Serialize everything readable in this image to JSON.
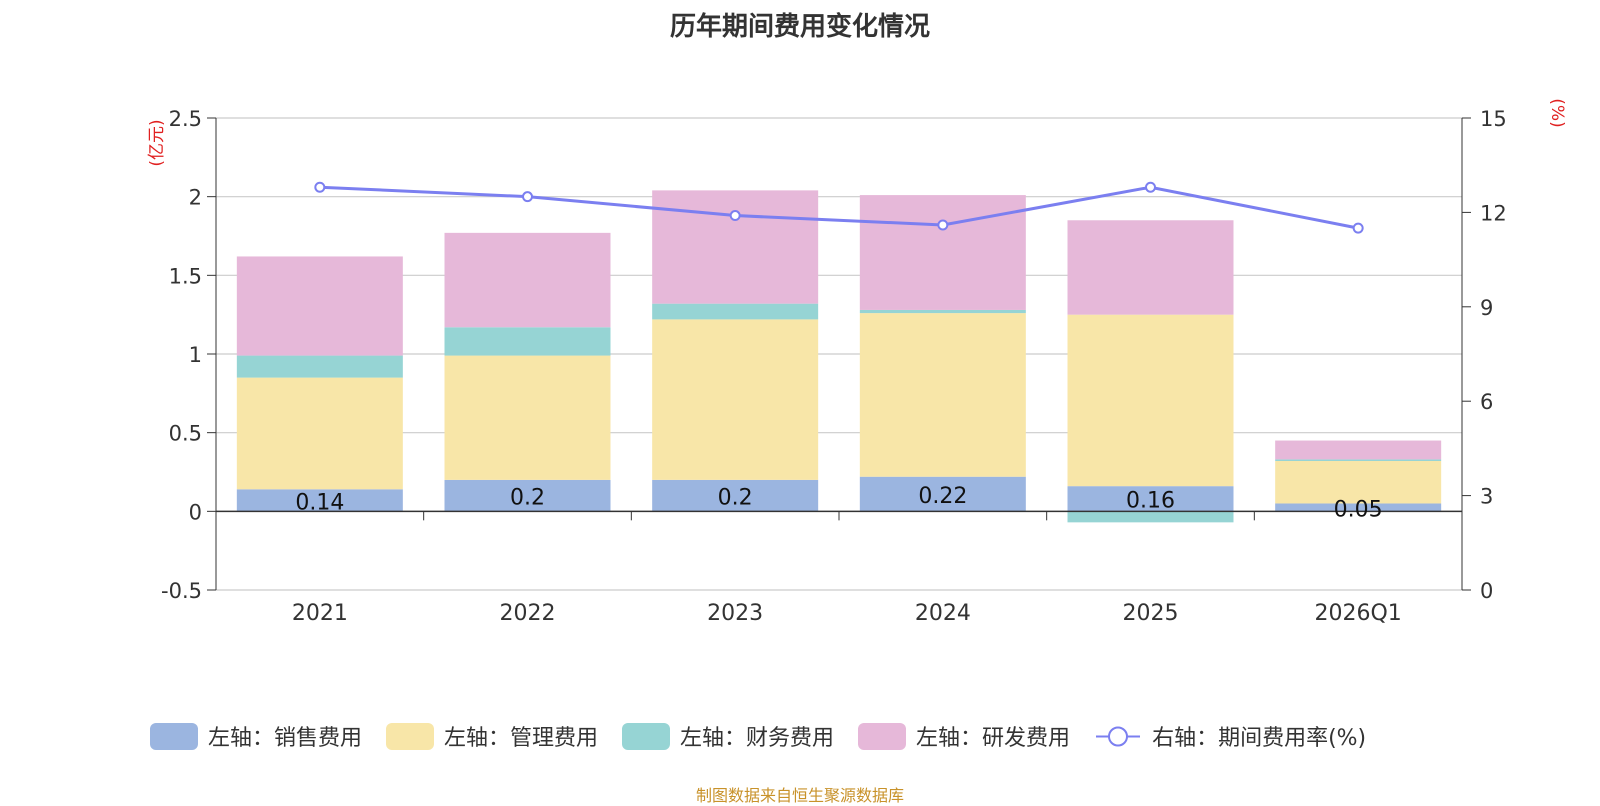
{
  "chart_data": {
    "type": "bar",
    "stacked": true,
    "title": "历年期间费用变化情况",
    "categories": [
      "2021",
      "2022",
      "2023",
      "2024",
      "2025",
      "2026Q1"
    ],
    "left_axis": {
      "unit_label": "(亿元)",
      "ylim": [
        -0.5,
        2.5
      ],
      "ticks": [
        -0.5,
        0,
        0.5,
        1,
        1.5,
        2,
        2.5
      ],
      "tick_labels": [
        "-0.5",
        "0",
        "0.5",
        "1",
        "1.5",
        "2",
        "2.5"
      ]
    },
    "right_axis": {
      "unit_label": "(%)",
      "ylim": [
        0,
        15
      ],
      "ticks": [
        0,
        3,
        6,
        9,
        12,
        15
      ],
      "tick_labels": [
        "0",
        "3",
        "6",
        "9",
        "12",
        "15"
      ]
    },
    "series": [
      {
        "name": "左轴：销售费用",
        "color": "#9bb5e0",
        "values": [
          0.14,
          0.2,
          0.2,
          0.22,
          0.16,
          0.05
        ],
        "labels": [
          "0.14",
          "0.2",
          "0.2",
          "0.22",
          "0.16",
          "0.05"
        ]
      },
      {
        "name": "左轴：管理费用",
        "color": "#f8e6a8",
        "values": [
          0.71,
          0.79,
          1.02,
          1.04,
          1.09,
          0.27
        ]
      },
      {
        "name": "左轴：财务费用",
        "color": "#96d4d4",
        "values": [
          0.14,
          0.18,
          0.1,
          0.02,
          -0.07,
          0.01
        ]
      },
      {
        "name": "左轴：研发费用",
        "color": "#e6b8d9",
        "values": [
          0.63,
          0.6,
          0.72,
          0.73,
          0.6,
          0.12
        ]
      }
    ],
    "line_series": {
      "name": "右轴：期间费用率(%)",
      "color": "#7b7ff0",
      "values": [
        12.8,
        12.5,
        11.9,
        11.6,
        12.8,
        11.5
      ]
    },
    "legend_position": "bottom"
  },
  "source_note": "制图数据来自恒生聚源数据库"
}
